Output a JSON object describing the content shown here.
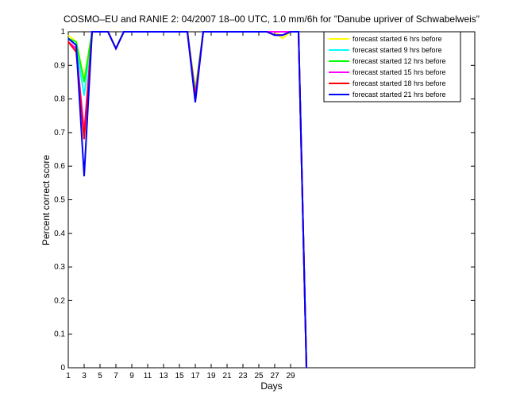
{
  "chart_data": {
    "type": "line",
    "title": "COSMO–EU and RANIE 2: 04/2007 18–00 UTC, 1.0 mm/6h for \"Danube upriver of Schwabelweis\"",
    "x_label": "Days",
    "y_label": "Percent correct score",
    "x": [
      1,
      2,
      3,
      4,
      5,
      6,
      7,
      8,
      9,
      10,
      11,
      12,
      13,
      14,
      15,
      16,
      17,
      18,
      19,
      20,
      21,
      22,
      23,
      24,
      25,
      26,
      27,
      28,
      29,
      30,
      31
    ],
    "series": [
      {
        "name": "forecast started 6 hrs before",
        "color": "#ffff00",
        "values": [
          0.99,
          0.97,
          0.86,
          1,
          1,
          1,
          0.95,
          1,
          1,
          1,
          1,
          1,
          1,
          1,
          1,
          1,
          0.83,
          1,
          1,
          1,
          1,
          1,
          1,
          1,
          1,
          1,
          1,
          0.98,
          1,
          1,
          0
        ]
      },
      {
        "name": "forecast started 9 hrs before",
        "color": "#00ffff",
        "values": [
          0.98,
          0.96,
          0.81,
          1,
          1,
          1,
          0.95,
          1,
          1,
          1,
          1,
          1,
          1,
          1,
          1,
          1,
          0.82,
          1,
          1,
          1,
          1,
          1,
          1,
          1,
          1,
          1,
          1,
          1,
          1,
          1,
          0
        ]
      },
      {
        "name": "forecast started 12 hrs before",
        "color": "#00ff00",
        "values": [
          0.98,
          0.97,
          0.85,
          1,
          1,
          1,
          0.95,
          1,
          1,
          1,
          1,
          1,
          1,
          1,
          1,
          1,
          0.82,
          1,
          1,
          1,
          1,
          1,
          1,
          1,
          1,
          1,
          1,
          1,
          1,
          1,
          0
        ]
      },
      {
        "name": "forecast started 15 hrs before",
        "color": "#ff00ff",
        "values": [
          0.97,
          0.95,
          0.7,
          1,
          1,
          1,
          0.95,
          1,
          1,
          1,
          1,
          1,
          1,
          1,
          1,
          1,
          0.81,
          1,
          1,
          1,
          1,
          1,
          1,
          1,
          1,
          1,
          1,
          1,
          1,
          1,
          0
        ]
      },
      {
        "name": "forecast started 18 hrs before",
        "color": "#ff0000",
        "values": [
          0.97,
          0.94,
          0.68,
          1,
          1,
          1,
          0.95,
          1,
          1,
          1,
          1,
          1,
          1,
          1,
          1,
          1,
          0.8,
          1,
          1,
          1,
          1,
          1,
          1,
          1,
          1,
          1,
          0.99,
          0.99,
          1,
          1,
          0
        ]
      },
      {
        "name": "forecast started 21 hrs before",
        "color": "#0000ff",
        "values": [
          0.98,
          0.96,
          0.57,
          1,
          1,
          1,
          0.95,
          1,
          1,
          1,
          1,
          1,
          1,
          1,
          1,
          1,
          0.79,
          1,
          1,
          1,
          1,
          1,
          1,
          1,
          1,
          1,
          0.99,
          0.99,
          1,
          1,
          0
        ]
      }
    ],
    "xlim": [
      1,
      52.2
    ],
    "xticks": [
      1,
      3,
      5,
      7,
      9,
      11,
      13,
      15,
      17,
      19,
      21,
      23,
      25,
      27,
      29
    ],
    "ylim": [
      0,
      1
    ],
    "yticks": [
      0,
      0.1,
      0.2,
      0.3,
      0.4,
      0.5,
      0.6,
      0.7,
      0.8,
      0.9,
      1
    ],
    "grid": false,
    "legend": "top-right"
  }
}
